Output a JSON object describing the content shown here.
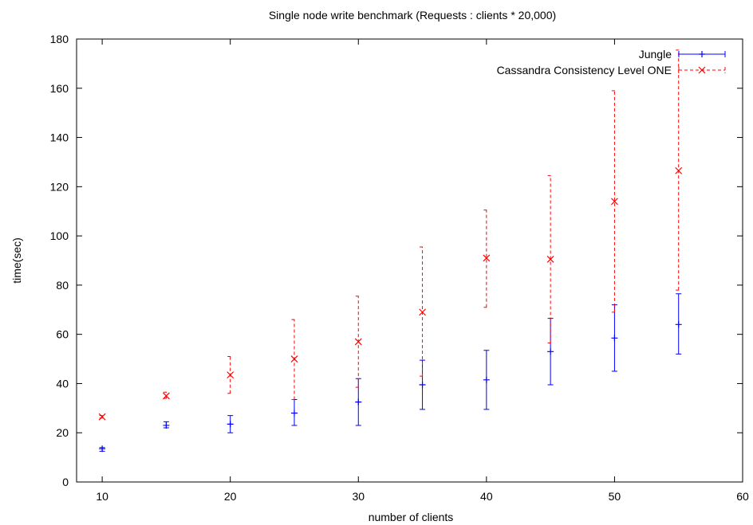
{
  "chart_data": {
    "type": "scatter",
    "title": "Single node write benchmark (Requests : clients * 20,000)",
    "xlabel": "number of clients",
    "ylabel": "time(sec)",
    "xlim": [
      8,
      60
    ],
    "ylim": [
      0,
      180
    ],
    "xticks": [
      10,
      20,
      30,
      40,
      50,
      60
    ],
    "yticks": [
      0,
      20,
      40,
      60,
      80,
      100,
      120,
      140,
      160,
      180
    ],
    "grid": false,
    "legend": "top-right",
    "error_bars": true,
    "series": [
      {
        "name": "Jungle",
        "color": "#0000ff",
        "marker": "plus",
        "line_style": "solid",
        "x": [
          10,
          15,
          20,
          25,
          30,
          35,
          40,
          45,
          50,
          55
        ],
        "y": [
          13.5,
          23,
          23.5,
          28,
          32.5,
          39.5,
          41.5,
          53,
          58.5,
          64
        ],
        "ymin": [
          12.5,
          22,
          20,
          23,
          23,
          29.5,
          29.5,
          39.5,
          45,
          52
        ],
        "ymax": [
          14,
          24.5,
          27,
          33.5,
          42,
          49.5,
          53.5,
          66.5,
          72,
          76.5
        ]
      },
      {
        "name": "Cassandra Consistency Level ONE",
        "color": "#ff0000",
        "marker": "x",
        "line_style": "dashed",
        "x": [
          10,
          15,
          20,
          25,
          30,
          35,
          40,
          45,
          50,
          55
        ],
        "y": [
          26.5,
          35,
          43.5,
          50,
          57,
          69,
          91,
          90.5,
          114,
          126.5
        ],
        "ymin": [
          26,
          34,
          36,
          33.5,
          38.5,
          43,
          71,
          56.5,
          69,
          78
        ],
        "ymax": [
          27,
          36.5,
          51,
          66,
          75.5,
          95.5,
          110.5,
          124.5,
          159,
          175.5
        ]
      }
    ]
  }
}
